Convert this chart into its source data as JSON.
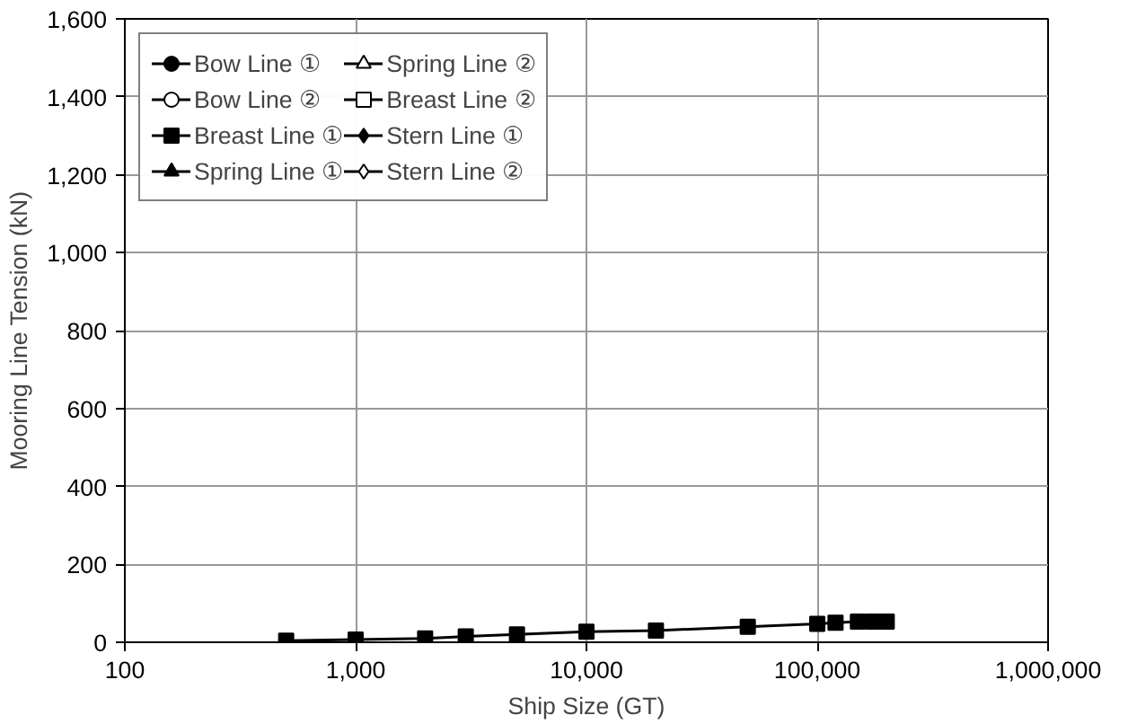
{
  "chart_data": {
    "type": "line",
    "xlabel": "Ship Size (GT)",
    "ylabel": "Mooring Line Tension (kN)",
    "log": "x",
    "x": [
      500,
      1000,
      2000,
      3000,
      5000,
      10000,
      20000,
      50000,
      100000,
      120000,
      150000,
      175000,
      200000
    ],
    "xlim": [
      100,
      1000000
    ],
    "xticks": [
      100,
      {
        "value": 1000,
        "label": "1,000"
      },
      {
        "value": 10000,
        "label": "10,000"
      },
      {
        "value": 100000,
        "label": "100,000"
      },
      {
        "value": 1000000,
        "label": "1,000,000"
      }
    ],
    "ylim": [
      0,
      1600
    ],
    "yticks": [
      0,
      200,
      400,
      600,
      800,
      {
        "value": 1000,
        "label": "1,000"
      },
      {
        "value": 1200,
        "label": "1,200"
      },
      {
        "value": 1400,
        "label": "1,400"
      },
      {
        "value": 1600,
        "label": "1,600"
      }
    ],
    "grid": true,
    "legend": "top left",
    "series": [
      {
        "name": "Bow Line ①",
        "color": "#000000",
        "marker": "circle",
        "values": [
          null,
          null,
          null,
          null,
          null,
          null,
          null,
          null,
          null,
          null,
          null,
          null,
          null
        ]
      },
      {
        "name": "Bow Line ②",
        "color": "#000000",
        "marker": "circle-open",
        "values": [
          null,
          null,
          null,
          null,
          null,
          null,
          null,
          null,
          null,
          null,
          null,
          null,
          null
        ]
      },
      {
        "name": "Breast Line ①",
        "color": "#000000",
        "marker": "square",
        "values": [
          4,
          7,
          10,
          15,
          20,
          27,
          30,
          40,
          47,
          50,
          53,
          53,
          53
        ]
      },
      {
        "name": "Spring Line ①",
        "color": "#000000",
        "marker": "triangle",
        "values": [
          null,
          null,
          null,
          null,
          null,
          null,
          null,
          null,
          null,
          null,
          null,
          null,
          null
        ]
      },
      {
        "name": "Spring Line ②",
        "color": "#000000",
        "marker": "triangle-open",
        "values": [
          null,
          null,
          null,
          null,
          null,
          null,
          null,
          null,
          null,
          null,
          null,
          null,
          null
        ]
      },
      {
        "name": "Breast Line ②",
        "color": "#000000",
        "marker": "square-open",
        "values": [
          null,
          null,
          null,
          null,
          null,
          null,
          null,
          null,
          null,
          null,
          null,
          null,
          null
        ]
      },
      {
        "name": "Stern Line ①",
        "color": "#000000",
        "marker": "diamond",
        "values": [
          null,
          null,
          null,
          null,
          null,
          null,
          null,
          null,
          null,
          null,
          null,
          null,
          null
        ]
      },
      {
        "name": "Stern Line ②",
        "color": "#000000",
        "marker": "diamond-open",
        "values": [
          null,
          null,
          null,
          null,
          null,
          null,
          null,
          null,
          null,
          null,
          null,
          null,
          null
        ]
      }
    ]
  }
}
